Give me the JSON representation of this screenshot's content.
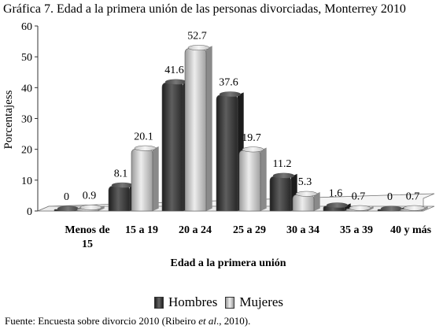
{
  "chart_data": {
    "type": "bar",
    "title": "Gráfica 7. Edad a la primera unión de las personas divorciadas, Monterrey 2010",
    "xlabel": "Edad a la primera unión",
    "ylabel": "Porcentajess",
    "ylim": [
      0,
      60
    ],
    "yticks": [
      "0",
      "10",
      "20",
      "30",
      "40",
      "50",
      "60"
    ],
    "grid": false,
    "legend_position": "bottom",
    "categories": [
      "Menos de 15",
      "15 a 19",
      "20 a 24",
      "25 a 29",
      "30 a 34",
      "35 a 39",
      "40 y más"
    ],
    "series": [
      {
        "name": "Hombres",
        "values": [
          0,
          8.1,
          41.6,
          37.6,
          11.2,
          1.6,
          0
        ],
        "labels": [
          "0",
          "8.1",
          "41.6",
          "37.6",
          "11.2",
          "1.6",
          "0"
        ]
      },
      {
        "name": "Mujeres",
        "values": [
          0.9,
          20.1,
          52.7,
          19.7,
          5.3,
          0.7,
          0.7
        ],
        "labels": [
          "0.9",
          "20.1",
          "52.7",
          "19.7",
          "5.3",
          "0.7",
          "0.7"
        ]
      }
    ],
    "colors": {
      "Hombres": "#3a3a3a",
      "Mujeres": "#c4c4c4"
    }
  },
  "source": {
    "prefix": "Fuente: Encuesta sobre divorcio 2010 (Ribeiro ",
    "italic": "et al",
    "suffix": "., 2010)."
  }
}
